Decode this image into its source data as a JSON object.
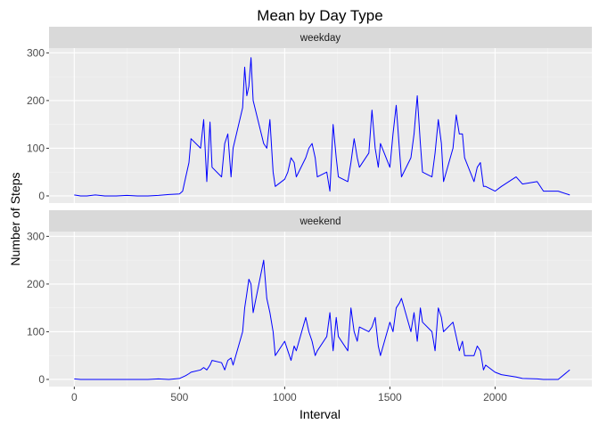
{
  "chart_data": {
    "type": "line",
    "title": "Mean by Day Type",
    "xlabel": "Interval",
    "ylabel": "Number of Steps",
    "xlim": [
      -120,
      2460
    ],
    "ylim": [
      -15,
      310
    ],
    "x_ticks": [
      0,
      500,
      1000,
      1500,
      2000
    ],
    "y_ticks": [
      0,
      100,
      200,
      300
    ],
    "grid": true,
    "line_color": "#0000ff",
    "panels": [
      {
        "strip": "weekday",
        "series": [
          {
            "x": [
              0,
              30,
              60,
              100,
              145,
              200,
              250,
              300,
              350,
              400,
              450,
              500,
              515,
              530,
              545,
              555,
              600,
              615,
              630,
              645,
              655,
              700,
              715,
              730,
              745,
              755,
              800,
              810,
              820,
              830,
              840,
              850,
              900,
              915,
              930,
              945,
              955,
              1000,
              1015,
              1030,
              1045,
              1055,
              1100,
              1115,
              1130,
              1145,
              1155,
              1200,
              1215,
              1230,
              1245,
              1255,
              1300,
              1315,
              1330,
              1345,
              1355,
              1400,
              1415,
              1430,
              1445,
              1455,
              1500,
              1515,
              1530,
              1545,
              1555,
              1600,
              1615,
              1630,
              1645,
              1655,
              1700,
              1715,
              1730,
              1745,
              1755,
              1800,
              1815,
              1830,
              1845,
              1855,
              1900,
              1915,
              1930,
              1945,
              1955,
              2000,
              2030,
              2100,
              2130,
              2200,
              2230,
              2300,
              2355
            ],
            "y": [
              2,
              0,
              0,
              2,
              0,
              0,
              1,
              0,
              0,
              1,
              3,
              4,
              10,
              40,
              70,
              120,
              100,
              160,
              30,
              155,
              60,
              40,
              110,
              130,
              40,
              100,
              185,
              270,
              210,
              230,
              290,
              200,
              110,
              100,
              160,
              50,
              20,
              35,
              50,
              80,
              70,
              40,
              80,
              100,
              110,
              80,
              40,
              50,
              10,
              150,
              80,
              40,
              30,
              70,
              120,
              80,
              60,
              90,
              180,
              100,
              60,
              110,
              60,
              130,
              190,
              100,
              40,
              80,
              130,
              210,
              110,
              50,
              40,
              90,
              160,
              110,
              30,
              100,
              170,
              130,
              130,
              80,
              30,
              60,
              70,
              20,
              20,
              10,
              20,
              40,
              25,
              30,
              10,
              10,
              2
            ]
          }
        ]
      },
      {
        "strip": "weekend",
        "series": [
          {
            "x": [
              0,
              30,
              60,
              100,
              145,
              200,
              250,
              300,
              350,
              400,
              450,
              500,
              515,
              530,
              545,
              555,
              600,
              615,
              630,
              645,
              655,
              700,
              715,
              730,
              745,
              755,
              800,
              810,
              820,
              830,
              840,
              850,
              900,
              915,
              930,
              945,
              955,
              1000,
              1015,
              1030,
              1045,
              1055,
              1100,
              1115,
              1130,
              1145,
              1155,
              1200,
              1215,
              1230,
              1245,
              1255,
              1300,
              1315,
              1330,
              1345,
              1355,
              1400,
              1415,
              1430,
              1445,
              1455,
              1500,
              1515,
              1530,
              1545,
              1555,
              1600,
              1615,
              1630,
              1645,
              1655,
              1700,
              1715,
              1730,
              1745,
              1755,
              1800,
              1815,
              1830,
              1845,
              1855,
              1900,
              1915,
              1930,
              1945,
              1955,
              2000,
              2030,
              2100,
              2130,
              2200,
              2230,
              2300,
              2355
            ],
            "y": [
              1,
              0,
              0,
              0,
              0,
              0,
              0,
              0,
              0,
              1,
              0,
              2,
              5,
              8,
              12,
              15,
              20,
              25,
              20,
              30,
              40,
              35,
              20,
              40,
              45,
              30,
              100,
              150,
              180,
              210,
              200,
              140,
              250,
              170,
              140,
              100,
              50,
              80,
              60,
              40,
              70,
              60,
              130,
              100,
              80,
              50,
              60,
              90,
              140,
              60,
              130,
              90,
              60,
              150,
              100,
              80,
              110,
              100,
              110,
              130,
              70,
              50,
              120,
              100,
              150,
              160,
              170,
              100,
              140,
              80,
              150,
              120,
              100,
              60,
              150,
              130,
              100,
              120,
              90,
              60,
              80,
              50,
              50,
              70,
              60,
              20,
              30,
              15,
              10,
              5,
              2,
              1,
              0,
              0,
              20
            ]
          }
        ]
      }
    ]
  }
}
